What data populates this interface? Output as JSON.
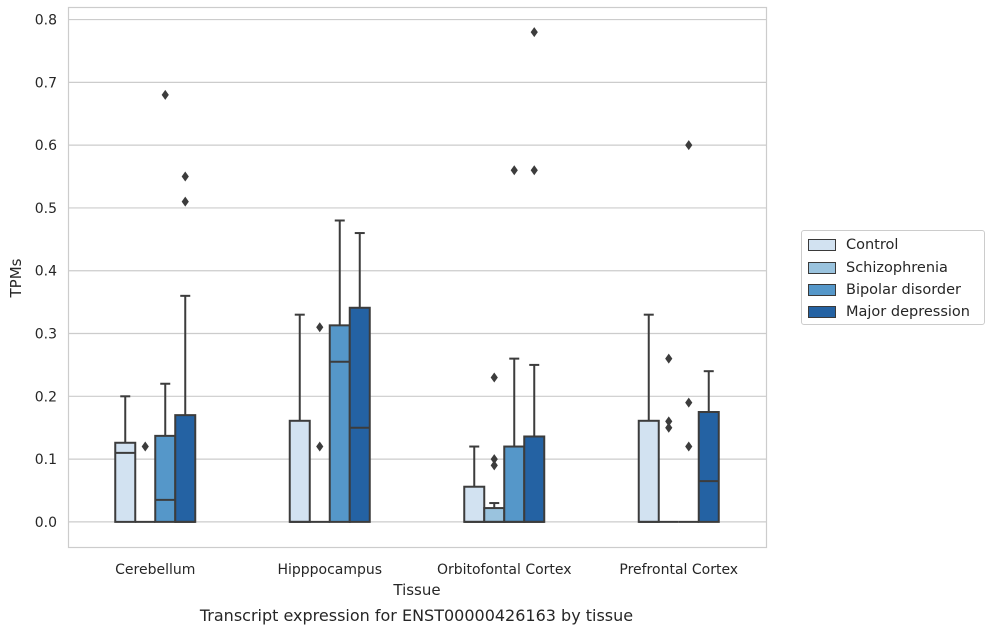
{
  "caption": "Transcript expression for ENST00000426163 by tissue",
  "colors": {
    "Control": "#d2e2f1",
    "Schizophrenia": "#9ac3de",
    "Bipolar disorder": "#5597c9",
    "Major depression": "#2462a3"
  },
  "chart_data": {
    "type": "box",
    "xlabel": "Tissue",
    "ylabel": "TPMs",
    "categories": [
      "Cerebellum",
      "Hipppocampus",
      "Orbitofontal Cortex",
      "Prefrontal Cortex"
    ],
    "ylim": [
      -0.04,
      0.82
    ],
    "yticks": [
      "0.0",
      "0.1",
      "0.2",
      "0.3",
      "0.4",
      "0.5",
      "0.6",
      "0.7",
      "0.8"
    ],
    "grid": true,
    "legend_position": "right",
    "series": [
      {
        "name": "Control",
        "boxes": [
          {
            "q1": 0,
            "median": 0.11,
            "q3": 0.126,
            "whisker_low": 0,
            "whisker_high": 0.2,
            "outliers": []
          },
          {
            "q1": 0,
            "median": 0,
            "q3": 0.161,
            "whisker_low": 0,
            "whisker_high": 0.33,
            "outliers": []
          },
          {
            "q1": 0,
            "median": 0,
            "q3": 0.056,
            "whisker_low": 0,
            "whisker_high": 0.12,
            "outliers": []
          },
          {
            "q1": 0,
            "median": 0,
            "q3": 0.161,
            "whisker_low": 0,
            "whisker_high": 0.33,
            "outliers": []
          }
        ]
      },
      {
        "name": "Schizophrenia",
        "boxes": [
          {
            "q1": 0,
            "median": 0,
            "q3": 0,
            "whisker_low": 0,
            "whisker_high": 0,
            "outliers": [
              0.12
            ]
          },
          {
            "q1": 0,
            "median": 0,
            "q3": 0,
            "whisker_low": 0,
            "whisker_high": 0,
            "outliers": [
              0.12,
              0.31
            ]
          },
          {
            "q1": 0,
            "median": 0,
            "q3": 0.022,
            "whisker_low": 0,
            "whisker_high": 0.03,
            "outliers": [
              0.09,
              0.1,
              0.23
            ]
          },
          {
            "q1": 0,
            "median": 0,
            "q3": 0,
            "whisker_low": 0,
            "whisker_high": 0,
            "outliers": [
              0.15,
              0.16,
              0.26
            ]
          }
        ]
      },
      {
        "name": "Bipolar disorder",
        "boxes": [
          {
            "q1": 0,
            "median": 0.035,
            "q3": 0.137,
            "whisker_low": 0,
            "whisker_high": 0.22,
            "outliers": [
              0.68
            ]
          },
          {
            "q1": 0,
            "median": 0.255,
            "q3": 0.313,
            "whisker_low": 0,
            "whisker_high": 0.48,
            "outliers": []
          },
          {
            "q1": 0,
            "median": 0,
            "q3": 0.12,
            "whisker_low": 0,
            "whisker_high": 0.26,
            "outliers": [
              0.56
            ]
          },
          {
            "q1": 0,
            "median": 0,
            "q3": 0,
            "whisker_low": 0,
            "whisker_high": 0,
            "outliers": [
              0.12,
              0.19,
              0.6
            ]
          }
        ]
      },
      {
        "name": "Major depression",
        "boxes": [
          {
            "q1": 0,
            "median": 0,
            "q3": 0.17,
            "whisker_low": 0,
            "whisker_high": 0.36,
            "outliers": [
              0.51,
              0.55
            ]
          },
          {
            "q1": 0,
            "median": 0.15,
            "q3": 0.341,
            "whisker_low": 0,
            "whisker_high": 0.46,
            "outliers": []
          },
          {
            "q1": 0,
            "median": 0,
            "q3": 0.136,
            "whisker_low": 0,
            "whisker_high": 0.25,
            "outliers": [
              0.56,
              0.78
            ]
          },
          {
            "q1": 0,
            "median": 0.065,
            "q3": 0.175,
            "whisker_low": 0,
            "whisker_high": 0.24,
            "outliers": []
          }
        ]
      }
    ]
  }
}
